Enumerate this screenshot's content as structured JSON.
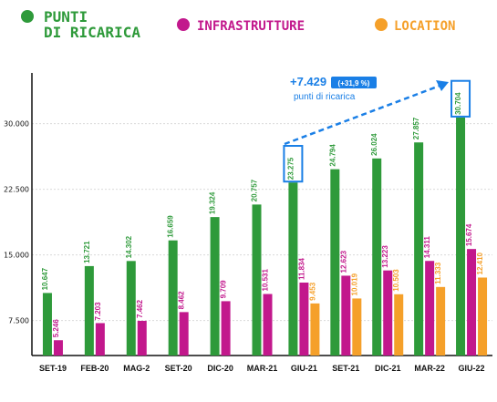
{
  "chart_data": {
    "type": "bar",
    "categories": [
      "SET-19",
      "FEB-20",
      "MAG-2",
      "SET-20",
      "DIC-20",
      "MAR-21",
      "GIU-21",
      "SET-21",
      "DIC-21",
      "MAR-22",
      "GIU-22"
    ],
    "series": [
      {
        "name": "PUNTI DI RICARICA",
        "color": "#2e9a3a",
        "values": [
          10647,
          13721,
          14302,
          16659,
          19324,
          20757,
          23275,
          24794,
          26024,
          27857,
          30704
        ],
        "labels": [
          "10.647",
          "13.721",
          "14.302",
          "16.659",
          "19.324",
          "20.757",
          "23.275",
          "24.794",
          "26.024",
          "27.857",
          "30.704"
        ]
      },
      {
        "name": "INFRASTRUTTURE",
        "color": "#c2188c",
        "values": [
          5246,
          7203,
          7462,
          8462,
          9709,
          10531,
          11834,
          12623,
          13223,
          14311,
          15674
        ],
        "labels": [
          "5.246",
          "7.203",
          "7.462",
          "8.462",
          "9.709",
          "10.531",
          "11.834",
          "12.623",
          "13.223",
          "14.311",
          "15.674"
        ]
      },
      {
        "name": "LOCATION",
        "color": "#f5a02a",
        "values": [
          null,
          null,
          null,
          null,
          null,
          null,
          9453,
          10019,
          10503,
          11333,
          12410
        ],
        "labels": [
          "",
          "",
          "",
          "",
          "",
          "",
          "9.453",
          "10.019",
          "10.503",
          "11.333",
          "12.410"
        ]
      }
    ],
    "yticks": [
      7500,
      15000,
      22500,
      30000
    ],
    "ytick_labels": [
      "7.500",
      "15.000",
      "22.500",
      "30.000"
    ],
    "ylim": [
      3500,
      35800
    ],
    "legend_placement": "top",
    "highlighted_categories": [
      "GIU-21",
      "GIU-22"
    ],
    "annotation": {
      "value": "+7.429",
      "badge": "(+31,9 %)",
      "text": "punti di ricarica",
      "color": "#1a7fe6"
    }
  }
}
